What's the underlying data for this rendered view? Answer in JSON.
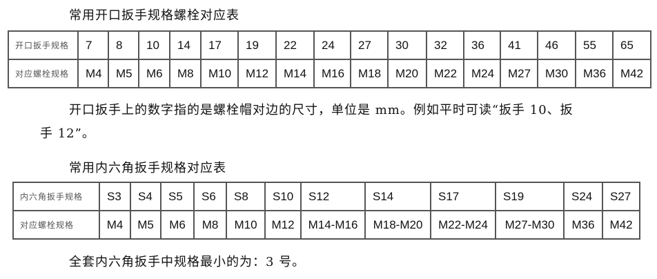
{
  "title1": "常用开口扳手规格螺栓对应表",
  "table1": {
    "row1_header": "开口扳手规格",
    "row1": [
      "7",
      "8",
      "10",
      "14",
      "17",
      "19",
      "22",
      "24",
      "27",
      "30",
      "32",
      "36",
      "41",
      "46",
      "55",
      "65"
    ],
    "row2_header": "对应螺栓规格",
    "row2": [
      "M4",
      "M5",
      "M6",
      "M8",
      "M10",
      "M12",
      "M14",
      "M16",
      "M18",
      "M20",
      "M22",
      "M24",
      "M27",
      "M30",
      "M36",
      "M42"
    ]
  },
  "paragraph_line1": "开口扳手上的数字指的是螺栓帽对边的尺寸，单位是 mm。例如平时可读“扳手 10、扳",
  "paragraph_line2": "手 12”。",
  "title2": "常用内六角扳手规格对应表",
  "table2": {
    "row1_header": "内六角扳手规格",
    "row1": [
      "S3",
      "S4",
      "S5",
      "S6",
      "S8",
      "S10",
      "S12",
      "S14",
      "S17",
      "S19",
      "S24",
      "S27"
    ],
    "row2_header": "对应螺栓规格",
    "row2": [
      "M4",
      "M5",
      "M6",
      "M8",
      "M10",
      "M12",
      "M14-M16",
      "M18-M20",
      "M22-M24",
      "M27-M30",
      "M36",
      "M42"
    ]
  },
  "footer_line": "全套内六角扳手中规格最小的为：3 号。"
}
